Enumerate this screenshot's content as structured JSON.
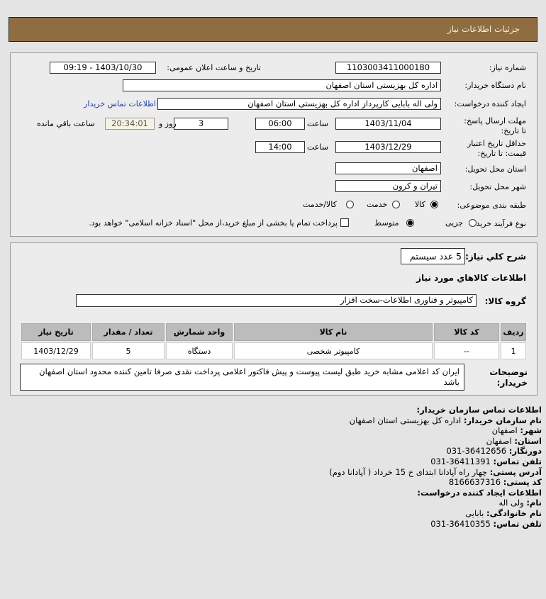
{
  "header": {
    "title": "جزئیات اطلاعات نیاز"
  },
  "details": {
    "need_number_label": "شماره نیاز:",
    "need_number": "1103003411000180",
    "announce_label": "تاریخ و ساعت اعلان عمومی:",
    "announce_value": "1403/10/30 - 09:19",
    "buyer_org_label": "نام دستگاه خریدار:",
    "buyer_org": "اداره کل بهزیستی استان اصفهان",
    "creator_label": "ایجاد کننده درخواست:",
    "creator": "ولی اله بابایی کارپرداز اداره کل بهزیستی استان اصفهان",
    "contact_link": "اطلاعات تماس خریدار",
    "deadline_label": "مهلت ارسال پاسخ: تا تاریخ:",
    "deadline_date": "1403/11/04",
    "time_label": "ساعت",
    "deadline_time": "06:00",
    "days": "3",
    "days_label": "روز و",
    "remaining": "20:34:01",
    "remaining_label": "ساعت باقي مانده",
    "validity_label": "حداقل تاریخ اعتبار قیمت: تا تاریخ:",
    "validity_date": "1403/12/29",
    "validity_time": "14:00",
    "province_label": "استان محل تحویل:",
    "province": "اصفهان",
    "city_label": "شهر محل تحویل:",
    "city": "تیران و کرون",
    "category_label": "طبقه بندی موضوعی:",
    "category_options": [
      "کالا",
      "خدمت",
      "کالا/خدمت"
    ],
    "category_selected": "کالا",
    "process_label": "نوع فرآیند خرید :",
    "process_options": [
      "جزیی",
      "متوسط"
    ],
    "process_selected": "متوسط",
    "payment_note": "پرداخت تمام یا بخشی از مبلغ خرید،از محل \"اسناد خزانه اسلامی\" خواهد بود.",
    "payment_checked": false
  },
  "summary": {
    "desc_label": "شرح كلي نياز:",
    "desc": "5 عدد سیستم",
    "goods_title": "اطلاعات كالاهاي مورد نياز",
    "group_label": "گروه کالا:",
    "group": "کامپیوتر و فناوری اطلاعات-سخت افزار",
    "table": {
      "headers": [
        "ردیف",
        "کد کالا",
        "نام کالا",
        "واحد شمارش",
        "تعداد / مقدار",
        "تاریخ نیاز"
      ],
      "rows": [
        [
          "1",
          "--",
          "کامپیوتر شخصی",
          "دستگاه",
          "5",
          "1403/12/29"
        ]
      ]
    },
    "notes_label": "توضیحات خریدار:",
    "notes": "ایران کد اعلامی مشابه خرید طبق لیست پیوست و پیش فاکتور اعلامی پرداخت نقدی صرفا تامین کننده محدود استان اصفهان باشد"
  },
  "contact": {
    "title": "اطلاعات تماس سازمان خریدار:",
    "items": [
      {
        "label": "نام سازمان خریدار:",
        "value": "اداره کل بهزیستی استان اصفهان"
      },
      {
        "label": "شهر:",
        "value": "اصفهان"
      },
      {
        "label": "استان:",
        "value": "اصفهان"
      },
      {
        "label": "دورنگار:",
        "value": "031-36412656"
      },
      {
        "label": "تلفن تماس:",
        "value": "031-36411391"
      },
      {
        "label": "آدرس پستی:",
        "value": "چهار راه آپادانا ابتدای خ 15 خرداد ( آپادانا دوم)"
      },
      {
        "label": "کد پستی:",
        "value": "8166637316"
      }
    ],
    "creator_title": "اطلاعات ایجاد کننده درخواست:",
    "creator_items": [
      {
        "label": "نام:",
        "value": "ولی اله"
      },
      {
        "label": "نام خانوادگی:",
        "value": "بابایی"
      },
      {
        "label": "تلفن تماس:",
        "value": "031-36410355"
      }
    ]
  },
  "colors": {
    "header": "#8f6d41",
    "link": "#1a3fa8",
    "remaining_bg": "#f7f3e3"
  }
}
